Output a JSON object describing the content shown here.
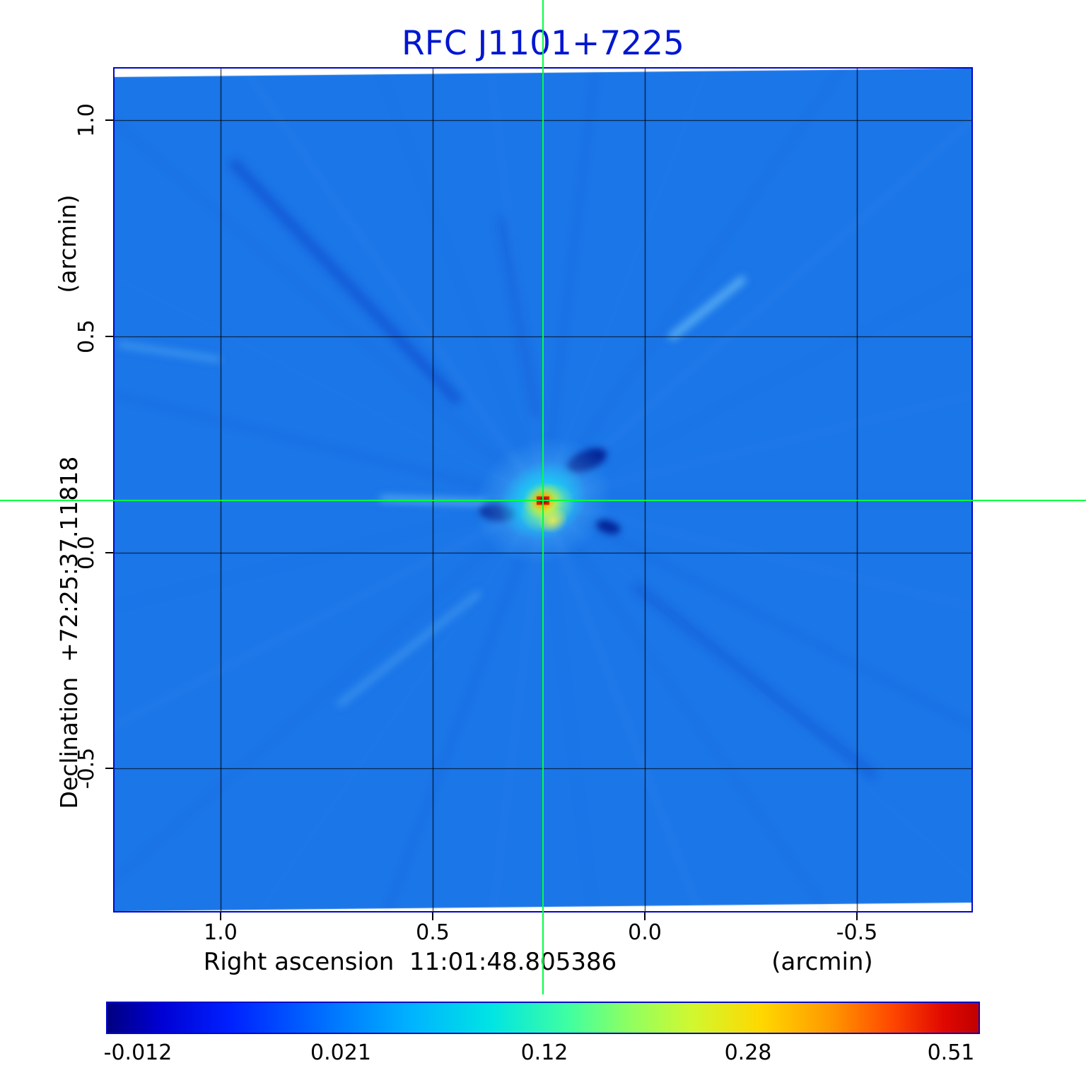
{
  "chart_data": {
    "type": "heatmap",
    "title": "RFC J1101+7225",
    "title_color": "#0016d0",
    "x_axis": {
      "label": "Right ascension  11:01:48.805386",
      "unit": "(arcmin)",
      "ticks": [
        1.0,
        0.5,
        0.0,
        -0.5
      ],
      "tick_labels": [
        "1.0",
        "0.5",
        "0.0",
        "-0.5"
      ],
      "range": [
        1.25,
        -0.77
      ]
    },
    "y_axis": {
      "label": "Declination  +72:25:37.11818",
      "unit": "(arcmin)",
      "ticks": [
        1.0,
        0.5,
        0.0,
        -0.5
      ],
      "tick_labels": [
        "1.0",
        "0.5",
        "0.0",
        "-0.5"
      ],
      "range": [
        1.12,
        -0.83
      ]
    },
    "grid": true,
    "crosshair": {
      "x_arcmin": 0.24,
      "y_arcmin": 0.12,
      "color": "#00ff40"
    },
    "peak": {
      "x_arcmin": 0.24,
      "y_arcmin": 0.12,
      "value": 0.51
    },
    "background_level": 0.0,
    "colorbar": {
      "tick_labels": [
        "-0.012",
        "0.021",
        "0.12",
        "0.28",
        "0.51"
      ],
      "colormap": "jet",
      "scale": "nonlinear",
      "gradient_stops": [
        "#000080 0%",
        "#0000d2 6%",
        "#0020ff 14%",
        "#0070ff 25%",
        "#00b4ff 35%",
        "#00e4e4 44%",
        "#40ffa0 53%",
        "#90ff60 60%",
        "#d0f830 67%",
        "#ffd800 75%",
        "#ff9800 83%",
        "#ff4800 90%",
        "#e00800 96%",
        "#c00000 100%"
      ]
    },
    "colors": {
      "background": "#1b76e8",
      "frame": "#0008c8",
      "grid": "#000000"
    }
  }
}
